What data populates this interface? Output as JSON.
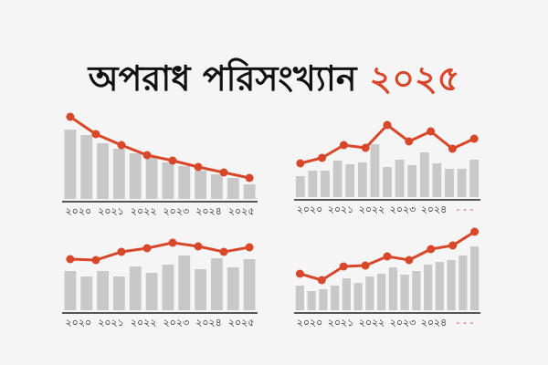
{
  "title": "অপরাধ পরিসংখ্যান",
  "title_year": "২০২৫",
  "title_year_color": "#d9472b",
  "chart_data": [
    {
      "type": "bar-line",
      "ylim": [
        0,
        100
      ],
      "bar_color": "#c8c8c8",
      "line_color": "#d9472b",
      "bars": [
        76,
        70,
        61,
        55,
        50,
        45,
        40,
        36,
        31,
        27,
        23,
        16
      ],
      "line": [
        90,
        71,
        59,
        48,
        42,
        35,
        29,
        23
      ],
      "x_labels": [
        "২০২০",
        "২০২১",
        "২০২২",
        "২০২৩",
        "২০২৪",
        "২০২৫"
      ],
      "last_label_highlight": false
    },
    {
      "type": "bar-line",
      "ylim": [
        0,
        100
      ],
      "bar_color": "#c8c8c8",
      "line_color": "#d9472b",
      "bars": [
        23,
        29,
        29,
        40,
        36,
        38,
        58,
        33,
        41,
        35,
        49,
        37,
        31,
        31,
        41
      ],
      "line": [
        37,
        43,
        57,
        54,
        79,
        61,
        72,
        53,
        64
      ],
      "x_labels": [
        "২০২০",
        "২০২১",
        "২০২২",
        "২০২৩",
        "২০২৪",
        "- - -"
      ],
      "last_label_highlight": true
    },
    {
      "type": "bar-line",
      "ylim": [
        0,
        100
      ],
      "bar_color": "#c8c8c8",
      "line_color": "#d9472b",
      "bars": [
        43,
        37,
        43,
        37,
        48,
        41,
        50,
        60,
        45,
        57,
        47,
        56
      ],
      "line": [
        56,
        55,
        64,
        68,
        74,
        70,
        64,
        69
      ],
      "x_labels": [
        "২০২০",
        "২০২১",
        "২০২২",
        "২০২৩",
        "২০২৪",
        "২০২৫"
      ],
      "last_label_highlight": false
    },
    {
      "type": "bar-line",
      "ylim": [
        0,
        100
      ],
      "bar_color": "#c8c8c8",
      "line_color": "#d9472b",
      "bars": [
        27,
        21,
        23,
        27,
        35,
        30,
        37,
        40,
        47,
        39,
        43,
        50,
        53,
        55,
        60,
        70
      ],
      "line": [
        40,
        33,
        48,
        49,
        59,
        55,
        67,
        71,
        86
      ],
      "x_labels": [
        "২০২০",
        "২০২১",
        "২০২২",
        "২০২৩",
        "২০২৪",
        "- - -"
      ],
      "last_label_highlight": true
    }
  ]
}
